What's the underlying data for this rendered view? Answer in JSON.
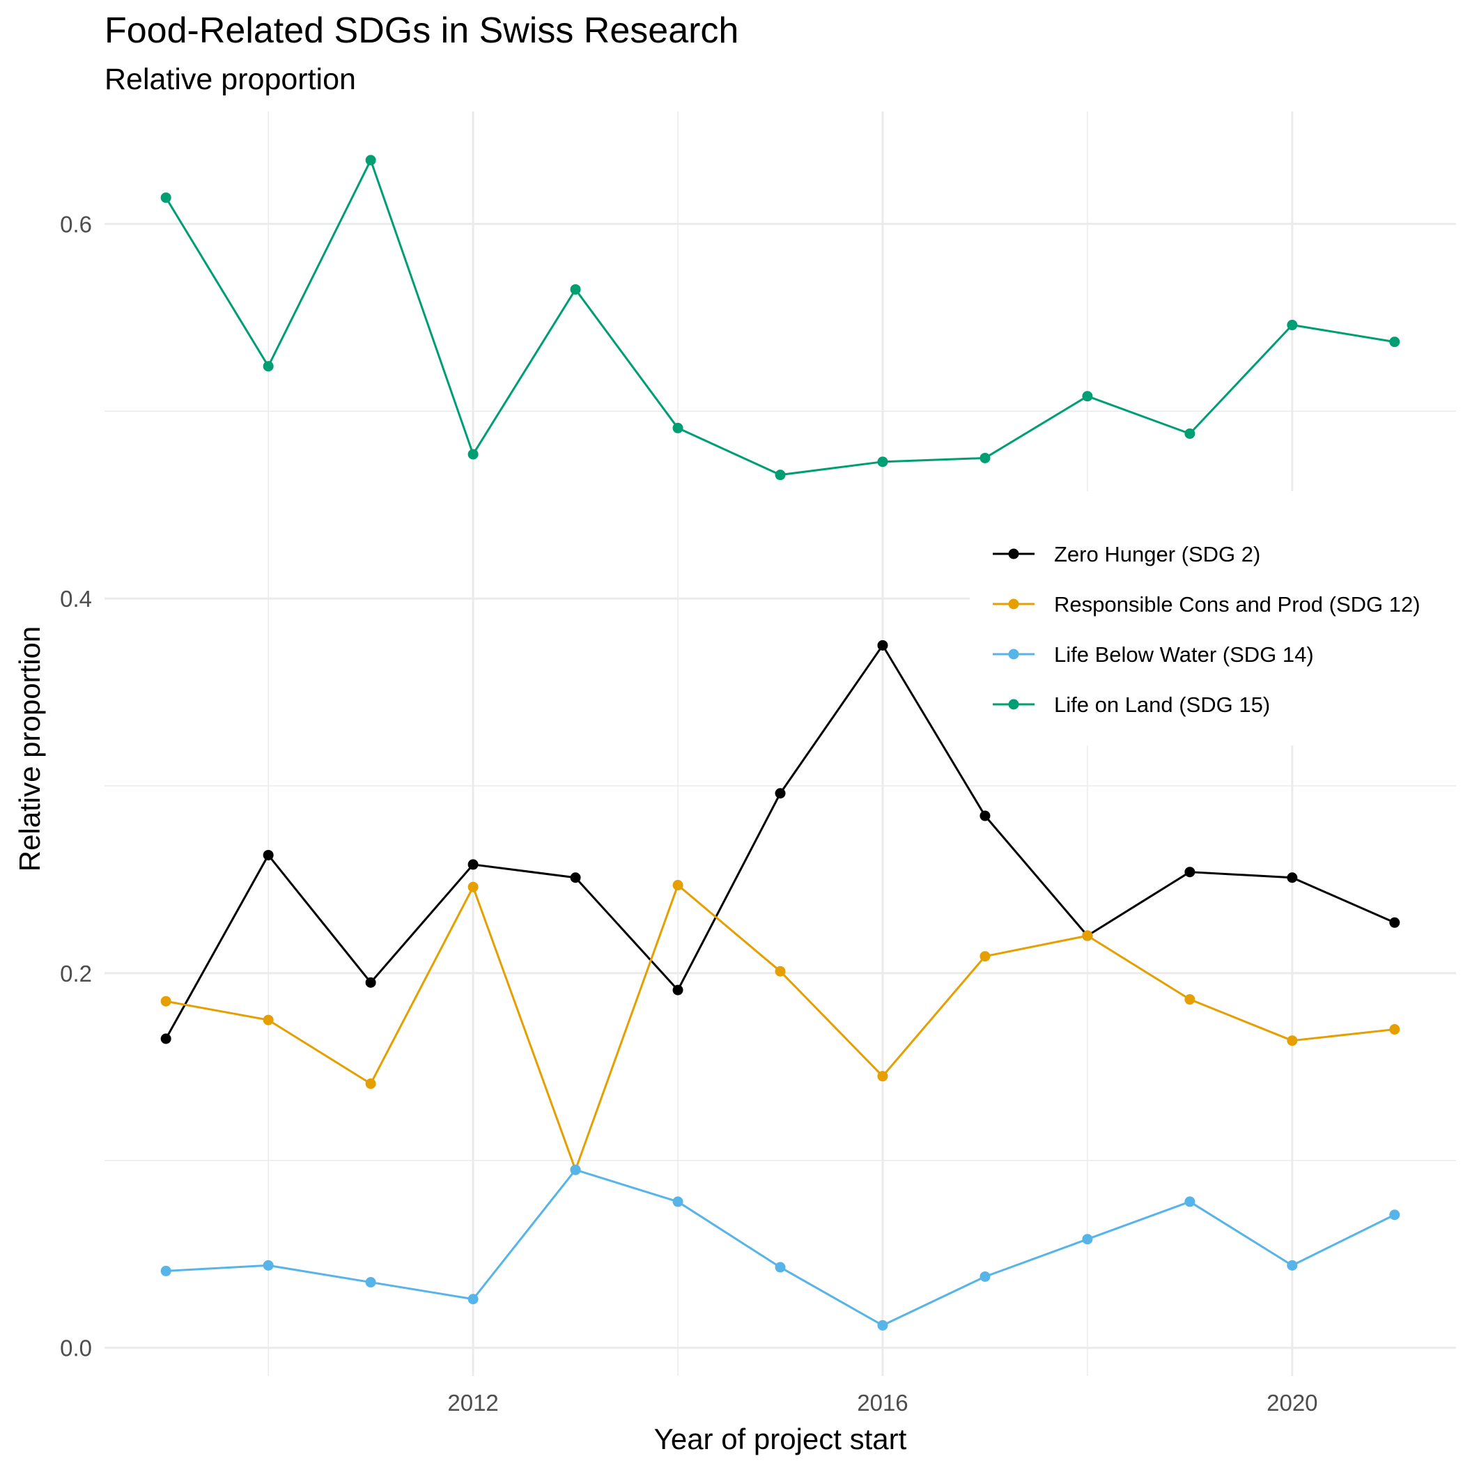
{
  "chart_data": {
    "type": "line",
    "title": "Food-Related SDGs in Swiss Research",
    "subtitle": "Relative proportion",
    "xlabel": "Year of project start",
    "ylabel": "Relative proportion",
    "x": [
      2009,
      2010,
      2011,
      2012,
      2013,
      2014,
      2015,
      2016,
      2017,
      2018,
      2019,
      2020,
      2021
    ],
    "xlim": [
      2008.4,
      2021.6
    ],
    "ylim": [
      -0.015,
      0.66
    ],
    "x_ticks": [
      2012,
      2016,
      2020
    ],
    "x_tick_labels": [
      "2012",
      "2016",
      "2020"
    ],
    "y_ticks": [
      0.0,
      0.2,
      0.4,
      0.6
    ],
    "y_tick_labels": [
      "0.0",
      "0.2",
      "0.4",
      "0.6"
    ],
    "grid": true,
    "legend_position": "right-inside",
    "series": [
      {
        "name": "Zero Hunger (SDG 2)",
        "color": "#000000",
        "values": [
          0.165,
          0.263,
          0.195,
          0.258,
          0.251,
          0.191,
          0.296,
          0.375,
          0.284,
          0.22,
          0.254,
          0.251,
          0.227
        ]
      },
      {
        "name": "Responsible Cons and Prod (SDG 12)",
        "color": "#E69F00",
        "values": [
          0.185,
          0.175,
          0.141,
          0.246,
          0.095,
          0.247,
          0.201,
          0.145,
          0.209,
          0.22,
          0.186,
          0.164,
          0.17
        ]
      },
      {
        "name": "Life Below Water (SDG 14)",
        "color": "#56B4E9",
        "values": [
          0.041,
          0.044,
          0.035,
          0.026,
          0.095,
          0.078,
          0.043,
          0.012,
          0.038,
          0.058,
          0.078,
          0.044,
          0.071
        ]
      },
      {
        "name": "Life on Land (SDG 15)",
        "color": "#009E73",
        "values": [
          0.614,
          0.524,
          0.634,
          0.477,
          0.565,
          0.491,
          0.466,
          0.473,
          0.475,
          0.508,
          0.488,
          0.546,
          0.537
        ]
      }
    ]
  }
}
